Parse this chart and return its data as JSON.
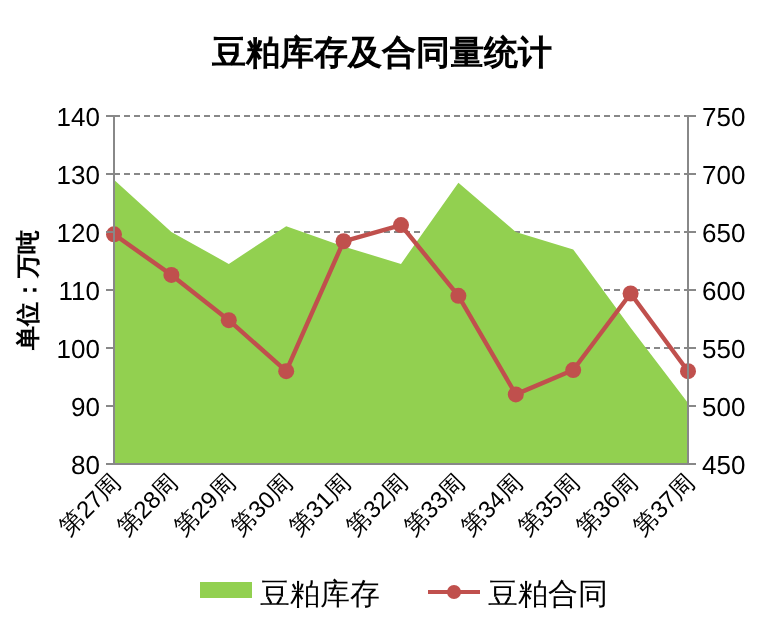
{
  "chart_data": {
    "type": "area",
    "title": "豆粕库存及合同量统计",
    "ylabel": "单位：万吨",
    "categories": [
      "第27周",
      "第28周",
      "第29周",
      "第30周",
      "第31周",
      "第32周",
      "第33周",
      "第34周",
      "第35周",
      "第36周",
      "第37周"
    ],
    "series": [
      {
        "name": "豆粕库存",
        "color": "#92d050",
        "values": [
          129,
          120,
          114.5,
          121,
          117.5,
          114.5,
          128.5,
          120,
          117,
          103.5,
          90.5
        ]
      },
      {
        "name": "豆粕合同",
        "type": "line",
        "axis": "y2",
        "color": "#c0504d",
        "marker": "circle",
        "values": [
          648,
          613,
          574,
          530,
          642,
          656,
          595,
          510,
          531,
          597,
          530
        ]
      }
    ],
    "ylim": [
      80,
      140
    ],
    "yticks": [
      80,
      90,
      100,
      110,
      120,
      130,
      140
    ],
    "y2lim": [
      450,
      750
    ],
    "y2ticks": [
      450,
      500,
      550,
      600,
      650,
      700,
      750
    ],
    "grid": "y",
    "legend": "bottom"
  }
}
